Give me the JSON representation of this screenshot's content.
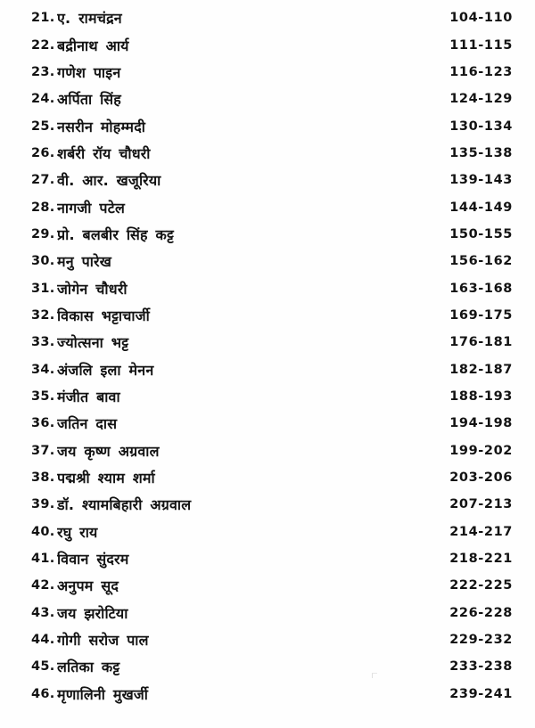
{
  "page": {
    "background_color": "#fefefe",
    "text_color": "#131313"
  },
  "toc": {
    "entries": [
      {
        "no": "21.",
        "name": "ए. रामचंद्रन",
        "pages": "104-110"
      },
      {
        "no": "22.",
        "name": "बद्रीनाथ आर्य",
        "pages": "111-115"
      },
      {
        "no": "23.",
        "name": "गणेश पाइन",
        "pages": "116-123"
      },
      {
        "no": "24.",
        "name": "अर्पिता सिंह",
        "pages": "124-129"
      },
      {
        "no": "25.",
        "name": "नसरीन मोहम्मदी",
        "pages": "130-134"
      },
      {
        "no": "26.",
        "name": "शर्बरी रॉय चौधरी",
        "pages": "135-138"
      },
      {
        "no": "27.",
        "name": "वी. आर. खजूरिया",
        "pages": "139-143"
      },
      {
        "no": "28.",
        "name": "नागजी पटेल",
        "pages": "144-149"
      },
      {
        "no": "29.",
        "name": "प्रो. बलबीर सिंह कट्ट",
        "pages": "150-155"
      },
      {
        "no": "30.",
        "name": "मनु पारेख",
        "pages": "156-162"
      },
      {
        "no": "31.",
        "name": "जोगेन चौधरी",
        "pages": "163-168"
      },
      {
        "no": "32.",
        "name": "विकास भट्टाचार्जी",
        "pages": "169-175"
      },
      {
        "no": "33.",
        "name": "ज्योत्सना भट्ट",
        "pages": "176-181"
      },
      {
        "no": "34.",
        "name": "अंजलि इला मेनन",
        "pages": "182-187"
      },
      {
        "no": "35.",
        "name": "मंजीत बावा",
        "pages": "188-193"
      },
      {
        "no": "36.",
        "name": "जतिन दास",
        "pages": "194-198"
      },
      {
        "no": "37.",
        "name": "जय कृष्ण अग्रवाल",
        "pages": "199-202"
      },
      {
        "no": "38.",
        "name": "पद्मश्री श्याम शर्मा",
        "pages": "203-206"
      },
      {
        "no": "39.",
        "name": "डॉ. श्यामबिहारी अग्रवाल",
        "pages": "207-213"
      },
      {
        "no": "40.",
        "name": "रघु राय",
        "pages": "214-217"
      },
      {
        "no": "41.",
        "name": "विवान सुंदरम",
        "pages": "218-221"
      },
      {
        "no": "42.",
        "name": "अनुपम सूद",
        "pages": "222-225"
      },
      {
        "no": "43.",
        "name": "जय झरोटिया",
        "pages": "226-228"
      },
      {
        "no": "44.",
        "name": "गोगी सरोज पाल",
        "pages": "229-232"
      },
      {
        "no": "45.",
        "name": "लतिका कट्ट",
        "pages": "233-238"
      },
      {
        "no": "46.",
        "name": "मृणालिनी मुखर्जी",
        "pages": "239-241"
      }
    ]
  }
}
